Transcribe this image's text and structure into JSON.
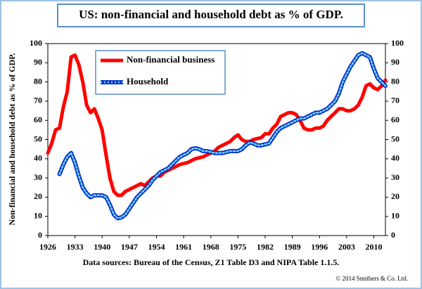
{
  "chart_data": {
    "type": "line",
    "title": "US: non-financial and household debt as % of GDP.",
    "ylabel": "Non-financial and household debt as % of GDP.",
    "source": "Data sources: Bureau of the Census, Z1 Table D3 and NIPA Table 1.1.5.",
    "copyright": "© 2014 Smithers & Co. Ltd.",
    "x": [
      1926,
      1927,
      1928,
      1929,
      1930,
      1931,
      1932,
      1933,
      1934,
      1935,
      1936,
      1937,
      1938,
      1939,
      1940,
      1941,
      1942,
      1943,
      1944,
      1945,
      1946,
      1947,
      1948,
      1949,
      1950,
      1951,
      1952,
      1953,
      1954,
      1955,
      1956,
      1957,
      1958,
      1959,
      1960,
      1961,
      1962,
      1963,
      1964,
      1965,
      1966,
      1967,
      1968,
      1969,
      1970,
      1971,
      1972,
      1973,
      1974,
      1975,
      1976,
      1977,
      1978,
      1979,
      1980,
      1981,
      1982,
      1983,
      1984,
      1985,
      1986,
      1987,
      1988,
      1989,
      1990,
      1991,
      1992,
      1993,
      1994,
      1995,
      1996,
      1997,
      1998,
      1999,
      2000,
      2001,
      2002,
      2003,
      2004,
      2005,
      2006,
      2007,
      2008,
      2009,
      2010,
      2011,
      2012,
      2013
    ],
    "series": [
      {
        "name": "Non-financial business",
        "color": "#ff0000",
        "values": [
          43,
          48,
          55,
          56,
          67,
          75,
          93,
          94,
          89,
          80,
          68,
          64,
          66,
          61,
          55,
          42,
          30,
          23,
          21,
          21,
          23,
          24,
          25,
          26,
          27,
          26,
          28,
          30,
          31,
          31,
          33,
          34,
          35,
          36,
          37,
          37.5,
          38,
          39,
          40,
          40.5,
          41,
          42,
          43,
          44,
          46,
          47,
          48,
          49,
          51,
          52.5,
          50,
          49,
          49,
          50,
          50.5,
          51,
          53,
          53,
          56,
          58,
          62,
          63,
          64,
          64,
          63,
          60,
          56,
          55,
          55,
          56,
          56,
          57,
          60,
          62,
          64,
          66,
          66,
          65,
          65,
          66,
          68,
          72,
          78,
          79,
          77,
          76,
          78,
          81
        ]
      },
      {
        "name": "Household",
        "color": "#0033cc",
        "values": [
          null,
          null,
          null,
          32,
          37,
          41,
          43,
          38,
          31,
          25,
          22,
          20,
          21,
          21,
          21,
          20,
          16,
          11,
          9,
          9.5,
          11,
          14,
          17,
          20,
          22,
          24,
          26,
          29,
          31,
          33,
          34,
          35,
          37,
          39,
          41,
          42,
          43,
          45,
          45.5,
          45,
          44,
          44,
          43.5,
          43,
          43,
          43,
          43.5,
          44,
          44,
          44,
          45,
          47,
          48.5,
          48,
          47,
          47,
          47.5,
          48,
          51,
          54,
          56,
          57,
          58,
          59,
          60,
          61,
          61,
          62,
          63,
          64,
          64,
          65,
          66,
          68,
          70,
          74,
          80,
          84,
          88,
          91,
          94,
          95,
          94,
          93,
          87,
          82,
          80,
          78
        ]
      }
    ],
    "xlim": [
      1926,
      2013
    ],
    "xticks": [
      1926,
      1933,
      1940,
      1947,
      1954,
      1961,
      1968,
      1975,
      1982,
      1989,
      1996,
      2003,
      2010
    ],
    "ylim": [
      0,
      100
    ],
    "yticks": [
      0,
      10,
      20,
      30,
      40,
      50,
      60,
      70,
      80,
      90,
      100
    ],
    "y2lim": [
      0,
      100
    ],
    "y2ticks": [
      0,
      10,
      20,
      30,
      40,
      50,
      60,
      70,
      80,
      90,
      100
    ],
    "legend": "upper left"
  }
}
